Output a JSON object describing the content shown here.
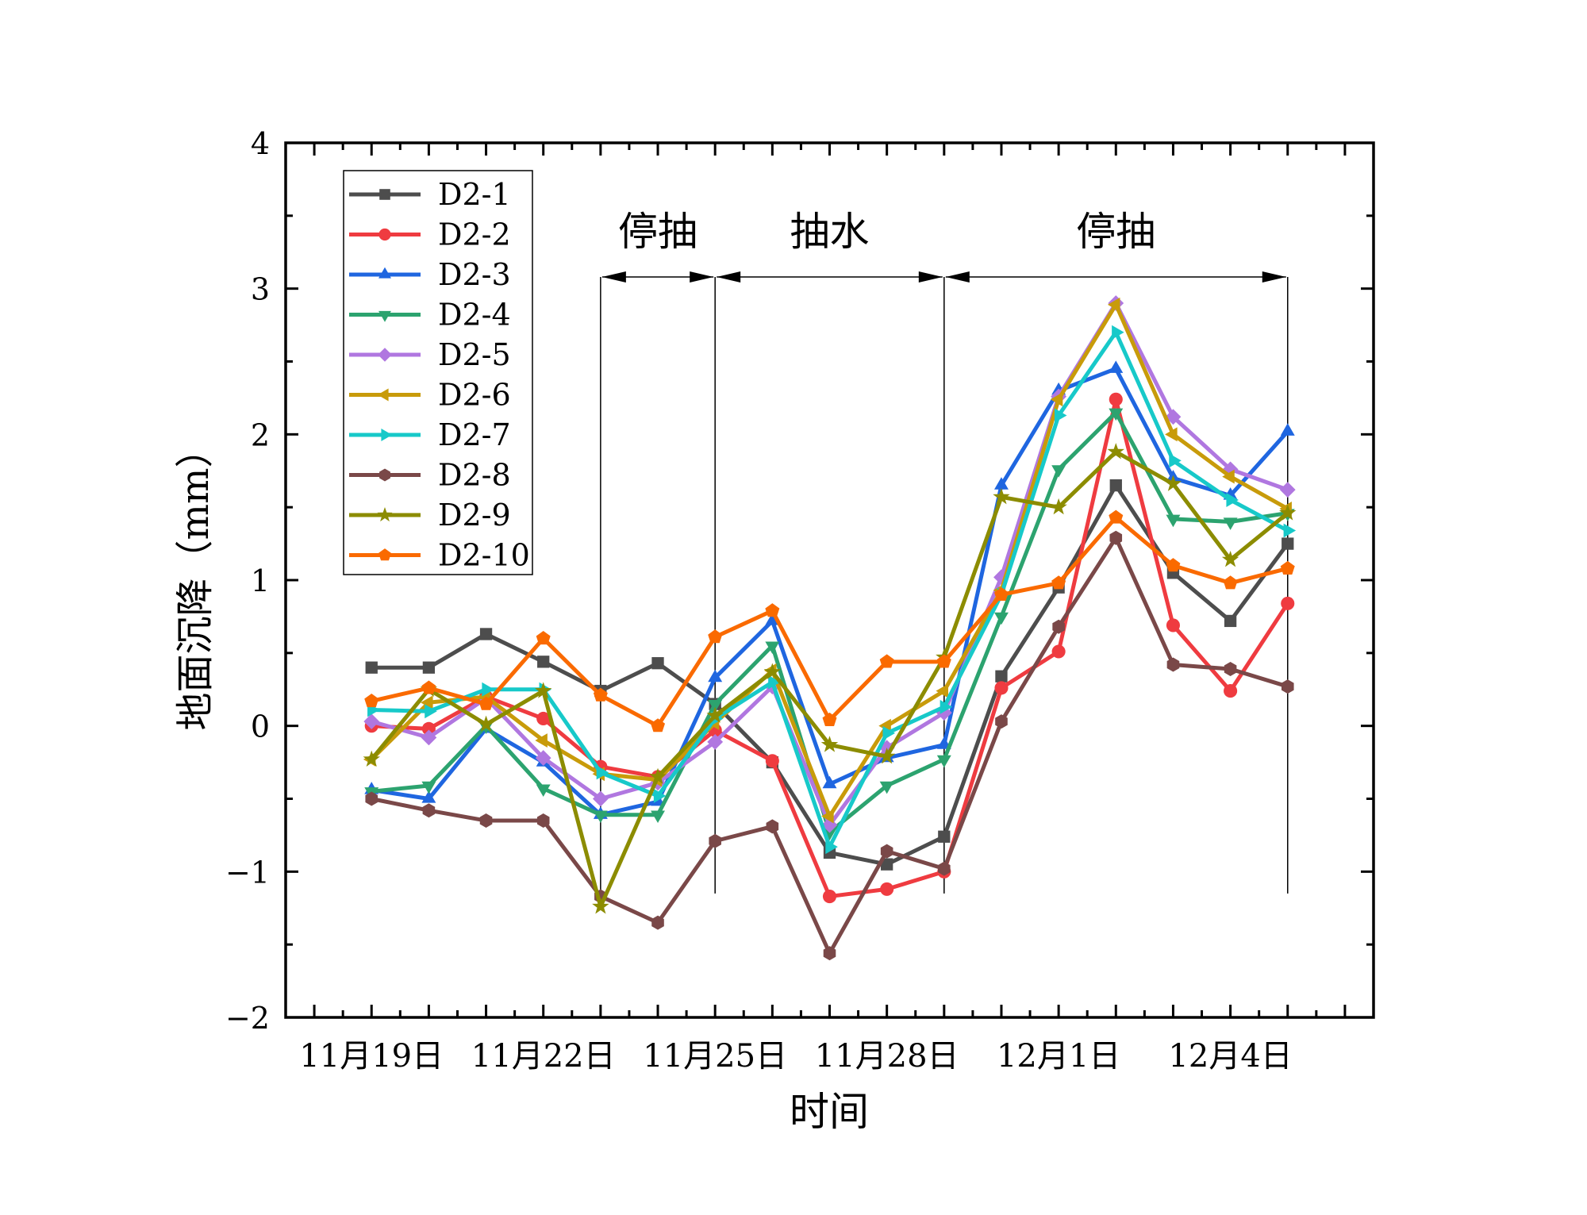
{
  "chart_data": {
    "type": "line",
    "xlabel": "时间",
    "ylabel": "地面沉降（mm）",
    "ylim": [
      -2,
      4
    ],
    "yticks": [
      "−2",
      "−1",
      "0",
      "1",
      "2",
      "3",
      "4"
    ],
    "x": [
      "11月19日",
      "11月20日",
      "11月21日",
      "11月22日",
      "11月23日",
      "11月24日",
      "11月25日",
      "11月26日",
      "11月27日",
      "11月28日",
      "11月29日",
      "11月30日",
      "12月1日",
      "12月2日",
      "12月3日",
      "12月4日",
      "12月5日"
    ],
    "xtick_labels": [
      "11月19日",
      "11月22日",
      "11月25日",
      "11月28日",
      "12月1日",
      "12月4日"
    ],
    "grid": false,
    "legend_position": "top-left",
    "series": [
      {
        "name": "D2-1",
        "color": "#4d4d4d",
        "marker": "square",
        "values": [
          0.4,
          0.4,
          0.63,
          0.44,
          0.24,
          0.43,
          0.15,
          -0.25,
          -0.87,
          -0.95,
          -0.76,
          0.34,
          0.95,
          1.65,
          1.05,
          0.72,
          1.25
        ]
      },
      {
        "name": "D2-2",
        "color": "#ef3b40",
        "marker": "circle",
        "values": [
          0.0,
          -0.02,
          0.2,
          0.05,
          -0.28,
          -0.35,
          -0.03,
          -0.24,
          -1.17,
          -1.12,
          -1.0,
          0.26,
          0.51,
          2.24,
          0.69,
          0.24,
          0.84
        ]
      },
      {
        "name": "D2-3",
        "color": "#1f66e0",
        "marker": "triangle-up",
        "values": [
          -0.44,
          -0.5,
          -0.02,
          -0.25,
          -0.61,
          -0.52,
          0.33,
          0.72,
          -0.4,
          -0.22,
          -0.13,
          1.65,
          2.3,
          2.45,
          1.7,
          1.58,
          2.02
        ]
      },
      {
        "name": "D2-4",
        "color": "#2ca36f",
        "marker": "triangle-down",
        "values": [
          -0.45,
          -0.41,
          0.0,
          -0.43,
          -0.61,
          -0.61,
          0.15,
          0.55,
          -0.73,
          -0.41,
          -0.23,
          0.75,
          1.76,
          2.15,
          1.42,
          1.4,
          1.46
        ]
      },
      {
        "name": "D2-5",
        "color": "#b077e0",
        "marker": "diamond",
        "values": [
          0.03,
          -0.08,
          0.19,
          -0.22,
          -0.5,
          -0.39,
          -0.11,
          0.27,
          -0.68,
          -0.15,
          0.09,
          1.02,
          2.26,
          2.9,
          2.12,
          1.76,
          1.62
        ]
      },
      {
        "name": "D2-6",
        "color": "#c89b0a",
        "marker": "triangle-left",
        "values": [
          -0.23,
          0.16,
          0.2,
          -0.1,
          -0.33,
          -0.37,
          0.02,
          0.38,
          -0.62,
          0.0,
          0.24,
          0.93,
          2.24,
          2.89,
          2.0,
          1.71,
          1.49
        ]
      },
      {
        "name": "D2-7",
        "color": "#17c9c9",
        "marker": "triangle-right",
        "values": [
          0.11,
          0.1,
          0.25,
          0.25,
          -0.32,
          -0.48,
          0.05,
          0.3,
          -0.83,
          -0.05,
          0.13,
          0.9,
          2.13,
          2.7,
          1.82,
          1.55,
          1.34
        ]
      },
      {
        "name": "D2-8",
        "color": "#7a4848",
        "marker": "hexagon",
        "values": [
          -0.5,
          -0.58,
          -0.65,
          -0.65,
          -1.17,
          -1.35,
          -0.79,
          -0.69,
          -1.56,
          -0.86,
          -0.98,
          0.03,
          0.68,
          1.29,
          0.42,
          0.39,
          0.27
        ]
      },
      {
        "name": "D2-9",
        "color": "#8c8c00",
        "marker": "star",
        "values": [
          -0.23,
          0.25,
          0.01,
          0.24,
          -1.24,
          -0.35,
          0.07,
          0.37,
          -0.13,
          -0.21,
          0.47,
          1.57,
          1.5,
          1.88,
          1.66,
          1.14,
          1.46
        ]
      },
      {
        "name": "D2-10",
        "color": "#fa6a00",
        "marker": "pentagon",
        "values": [
          0.17,
          0.26,
          0.15,
          0.6,
          0.21,
          0.0,
          0.61,
          0.79,
          0.04,
          0.44,
          0.44,
          0.9,
          0.98,
          1.43,
          1.1,
          0.98,
          1.08
        ]
      }
    ],
    "annotations": [
      {
        "label": "停抽",
        "from": "11月23日",
        "to": "11月25日"
      },
      {
        "label": "抽水",
        "from": "11月25日",
        "to": "11月29日"
      },
      {
        "label": "停抽",
        "from": "11月29日",
        "to": "12月5日"
      }
    ]
  }
}
